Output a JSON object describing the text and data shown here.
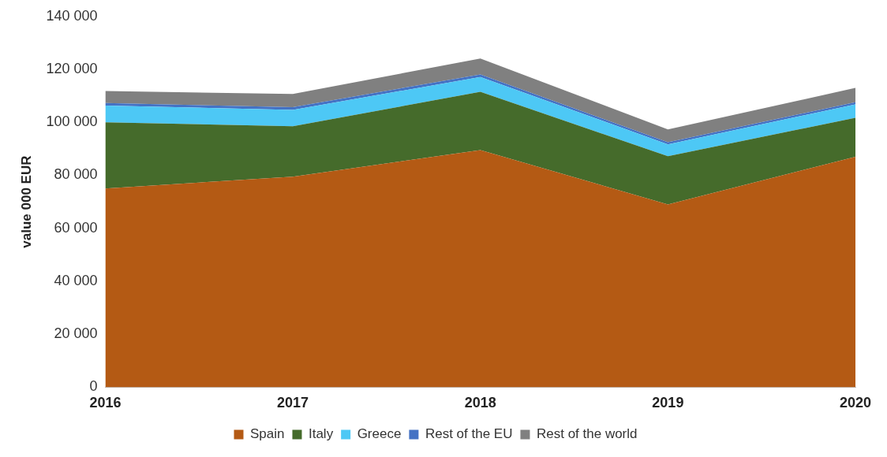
{
  "chart_data": {
    "type": "area",
    "stacked": true,
    "ylabel": "value 000 EUR",
    "categories": [
      "2016",
      "2017",
      "2018",
      "2019",
      "2020"
    ],
    "series": [
      {
        "name": "Spain",
        "color": "#b45a14",
        "values": [
          75000,
          79500,
          89500,
          69000,
          87000
        ]
      },
      {
        "name": "Italy",
        "color": "#456b2b",
        "values": [
          25000,
          19000,
          22000,
          18200,
          14700
        ]
      },
      {
        "name": "Greece",
        "color": "#4dc8f5",
        "values": [
          6300,
          6200,
          5600,
          4500,
          5100
        ]
      },
      {
        "name": "Rest of the EU",
        "color": "#4472c4",
        "values": [
          1000,
          1000,
          1000,
          800,
          800
        ]
      },
      {
        "name": "Rest of the world",
        "color": "#808080",
        "values": [
          4500,
          5000,
          6000,
          4800,
          5400
        ]
      }
    ],
    "ylim": [
      0,
      140000
    ],
    "yticks": [
      {
        "value": 0,
        "label": "0"
      },
      {
        "value": 20000,
        "label": "20 000"
      },
      {
        "value": 40000,
        "label": "40 000"
      },
      {
        "value": 60000,
        "label": "60 000"
      },
      {
        "value": 80000,
        "label": "80 000"
      },
      {
        "value": 100000,
        "label": "100 000"
      },
      {
        "value": 120000,
        "label": "120 000"
      },
      {
        "value": 140000,
        "label": "140 000"
      }
    ],
    "grid": false,
    "legend": "bottom"
  }
}
